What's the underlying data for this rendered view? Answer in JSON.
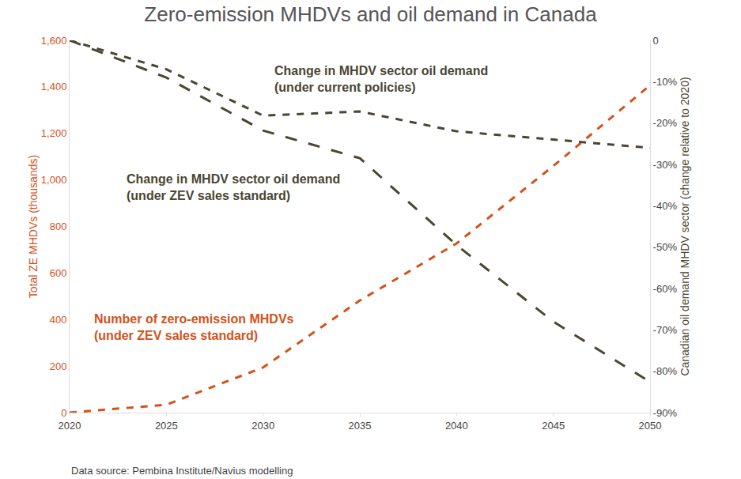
{
  "chart_data": {
    "type": "line",
    "title": "Zero-emission MHDVs and oil demand in Canada",
    "y_label": "Total ZE MHDVs (thousands)",
    "y2_label": "Canadian oil demand MHDV sector (change relative to 2020)",
    "source": "Data source: Pembina Institute/Navius modelling",
    "x": [
      2020,
      2025,
      2030,
      2035,
      2040,
      2045,
      2050
    ],
    "xlim": [
      2020,
      2050
    ],
    "xticks": [
      2020,
      2025,
      2030,
      2035,
      2040,
      2045,
      2050
    ],
    "ylim": [
      0,
      1600
    ],
    "yticks": [
      0,
      200,
      400,
      600,
      800,
      {
        "value": 1000,
        "label": "1,000"
      },
      {
        "value": 1200,
        "label": "1,200"
      },
      {
        "value": 1400,
        "label": "1,400"
      },
      {
        "value": 1600,
        "label": "1,600"
      }
    ],
    "y2lim": [
      -90,
      0
    ],
    "y2ticks": [
      {
        "value": -90,
        "label": "-90%"
      },
      {
        "value": -80,
        "label": "-80%"
      },
      {
        "value": -70,
        "label": "-70%"
      },
      {
        "value": -60,
        "label": "-60%"
      },
      {
        "value": -50,
        "label": "-50%"
      },
      {
        "value": -40,
        "label": "-40%"
      },
      {
        "value": -30,
        "label": "-30%"
      },
      {
        "value": -20,
        "label": "-20%"
      },
      {
        "value": -10,
        "label": "-10%"
      },
      0
    ],
    "grid": false,
    "series": [
      {
        "name": "Change in MHDV sector oil demand\n(under current policies)",
        "color": "#4a4632",
        "line_style": "dash",
        "marker": "none",
        "axis": "y2",
        "values": [
          0,
          -7,
          -18.2,
          -17.2,
          -22,
          -24,
          -26
        ]
      },
      {
        "name": "Change in MHDV sector oil demand\n(under ZEV sales standard)",
        "color": "#4a4632",
        "line_style": "longdash",
        "marker": "none",
        "axis": "y2",
        "values": [
          0,
          -9,
          -21.8,
          -28.5,
          -49.5,
          -68,
          -82.6
        ]
      },
      {
        "name": "Number of zero-emission MHDVs\n(under ZEV sales standard)",
        "color": "#d2521a",
        "line_style": "dash",
        "marker": "none",
        "values": [
          0,
          34,
          194,
          482,
          727,
          1060,
          1407
        ]
      }
    ]
  }
}
